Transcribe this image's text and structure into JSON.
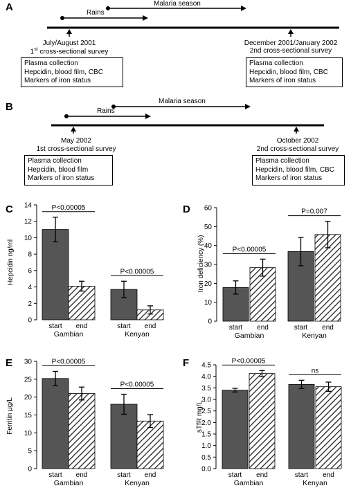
{
  "panel_A": {
    "label": "A",
    "rains": "Rains",
    "malaria": "Malaria season",
    "survey1": {
      "date": "July/August 2001",
      "num": "1",
      "sup": "st",
      "rest": " cross-sectional survey"
    },
    "survey2": {
      "date": "December 2001/January 2002",
      "title": "2nd cross-sectional survey"
    },
    "box1": [
      "Plasma collection",
      "Hepcidin, blood film, CBC",
      "Markers of iron status"
    ],
    "box2": [
      "Plasma collection",
      "Hepcidin, blood film, CBC",
      "Markers of iron status"
    ]
  },
  "panel_B": {
    "label": "B",
    "rains": "Rains",
    "malaria": "Malaria season",
    "survey1": {
      "date": "May 2002",
      "title": "1st cross-sectional survey"
    },
    "survey2": {
      "date": "October 2002",
      "title": "2nd cross-sectional survey"
    },
    "box1": [
      "Plasma collection",
      "Hepcidin, blood film",
      "Markers of iron status"
    ],
    "box2": [
      "Plasma collection",
      "Hepcidin, blood film, CBC",
      "Markers of iron status"
    ]
  },
  "colors": {
    "bar_fill": "#555555",
    "hatch": "#222222"
  },
  "chart_data": [
    {
      "panel": "C",
      "type": "bar",
      "ylabel": "Hepcidin ng/ml",
      "ylim": [
        0,
        14
      ],
      "yticks": [
        0,
        2,
        4,
        6,
        8,
        10,
        12,
        14
      ],
      "groups": [
        "Gambian",
        "Kenyan"
      ],
      "categories": [
        "start",
        "end"
      ],
      "values": [
        [
          11.0,
          4.1
        ],
        [
          3.7,
          1.2
        ]
      ],
      "errors": [
        [
          1.5,
          0.6
        ],
        [
          1.0,
          0.5
        ]
      ],
      "annotations": [
        {
          "text": "P<0.00005",
          "group": 0
        },
        {
          "text": "P<0.00005",
          "group": 1
        }
      ]
    },
    {
      "panel": "D",
      "type": "bar",
      "ylabel": "Iron deficiency (%)",
      "ylim": [
        0,
        60
      ],
      "yticks": [
        0,
        10,
        20,
        30,
        40,
        50,
        60
      ],
      "groups": [
        "Gambian",
        "Kenyan"
      ],
      "categories": [
        "start",
        "end"
      ],
      "values": [
        [
          17.8,
          28.3
        ],
        [
          36.8,
          45.8
        ]
      ],
      "errors": [
        [
          3.5,
          4.5
        ],
        [
          7.5,
          7.0
        ]
      ],
      "annotations": [
        {
          "text": "P<0.00005",
          "group": 0
        },
        {
          "text": "P=0.007",
          "group": 1
        }
      ]
    },
    {
      "panel": "E",
      "type": "bar",
      "ylabel": "Ferritin μg/L",
      "ylim": [
        0,
        30
      ],
      "yticks": [
        0,
        5,
        10,
        15,
        20,
        25,
        30
      ],
      "groups": [
        "Gambian",
        "Kenyan"
      ],
      "categories": [
        "start",
        "end"
      ],
      "values": [
        [
          25.2,
          21.0
        ],
        [
          18.0,
          13.3
        ]
      ],
      "errors": [
        [
          2.0,
          1.8
        ],
        [
          2.8,
          1.8
        ]
      ],
      "annotations": [
        {
          "text": "P<0.00005",
          "group": 0
        },
        {
          "text": "P<0.00005",
          "group": 1
        }
      ]
    },
    {
      "panel": "F",
      "type": "bar",
      "ylabel": "sTfR mg/L",
      "ylim": [
        0,
        4.5
      ],
      "yticks": [
        0,
        0.5,
        1.0,
        1.5,
        2.0,
        2.5,
        3.0,
        3.5,
        4.0,
        4.5
      ],
      "groups": [
        "Gambian",
        "Kenyan"
      ],
      "categories": [
        "start",
        "end"
      ],
      "values": [
        [
          3.4,
          4.12
        ],
        [
          3.65,
          3.55
        ]
      ],
      "errors": [
        [
          0.08,
          0.13
        ],
        [
          0.18,
          0.2
        ]
      ],
      "annotations": [
        {
          "text": "P<0.00005",
          "group": 0
        },
        {
          "text": "ns",
          "group": 1
        }
      ]
    }
  ]
}
